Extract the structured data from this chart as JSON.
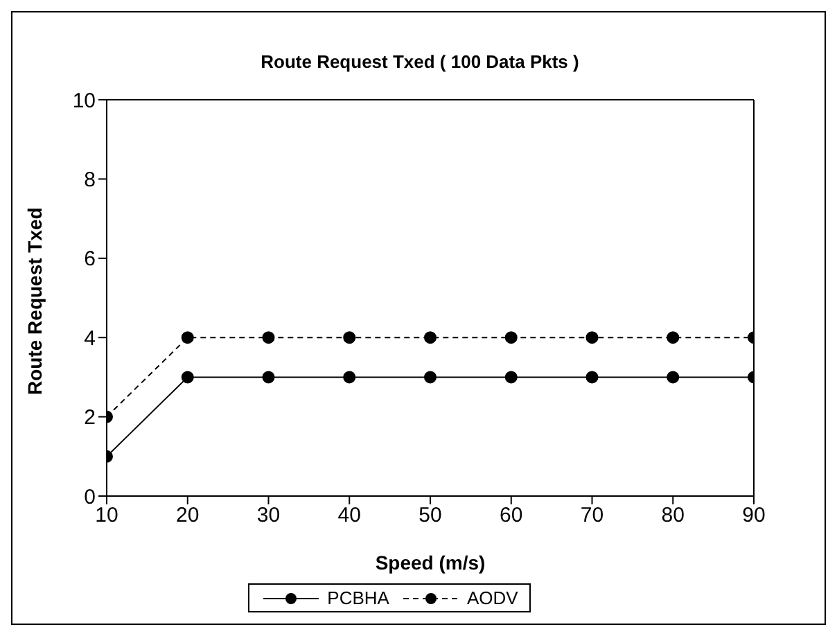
{
  "chart_data": {
    "type": "line",
    "title": "Route Request Txed ( 100 Data Pkts )",
    "xlabel": "Speed (m/s)",
    "ylabel": "Route Request Txed",
    "x": [
      10,
      20,
      30,
      40,
      50,
      60,
      70,
      80,
      90
    ],
    "series": [
      {
        "name": "PCBHA",
        "color": "#000000",
        "line_style": "solid",
        "values": [
          1,
          3,
          3,
          3,
          3,
          3,
          3,
          3,
          3
        ]
      },
      {
        "name": "AODV",
        "color": "#000000",
        "line_style": "dashed",
        "values": [
          2,
          4,
          4,
          4,
          4,
          4,
          4,
          4,
          4
        ]
      }
    ],
    "xlim": [
      10,
      90
    ],
    "xticks": [
      10,
      20,
      30,
      40,
      50,
      60,
      70,
      80,
      90
    ],
    "ylim": [
      0,
      10
    ],
    "yticks": [
      0,
      2,
      4,
      6,
      8,
      10
    ],
    "grid": false,
    "legend": "bottom",
    "marker": "circle"
  }
}
